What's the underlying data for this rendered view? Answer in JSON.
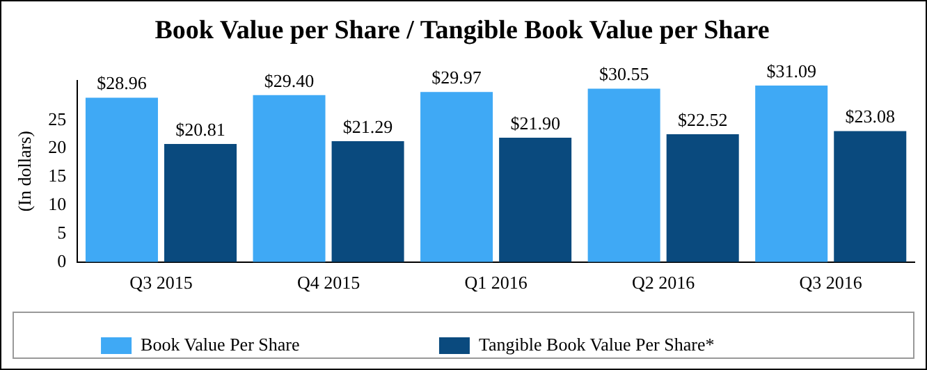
{
  "chart_data": {
    "type": "bar",
    "title": "Book Value per Share / Tangible Book Value per Share",
    "ylabel": "(In dollars)",
    "categories": [
      "Q3 2015",
      "Q4 2015",
      "Q1 2016",
      "Q2 2016",
      "Q3 2016"
    ],
    "series": [
      {
        "name": "Book Value Per Share",
        "color": "#3fa9f5",
        "values": [
          28.96,
          29.4,
          29.97,
          30.55,
          31.09
        ],
        "value_labels": [
          "$28.96",
          "$29.40",
          "$29.97",
          "$30.55",
          "$31.09"
        ]
      },
      {
        "name": "Tangible Book Value Per Share*",
        "color": "#0a4a7e",
        "values": [
          20.81,
          21.29,
          21.9,
          22.52,
          23.08
        ],
        "value_labels": [
          "$20.81",
          "$21.29",
          "$21.90",
          "$22.52",
          "$23.08"
        ]
      }
    ],
    "ylim": [
      0,
      32
    ],
    "yticks": [
      0,
      5,
      10,
      15,
      20,
      25
    ],
    "grid": false,
    "legend": "bottom"
  }
}
